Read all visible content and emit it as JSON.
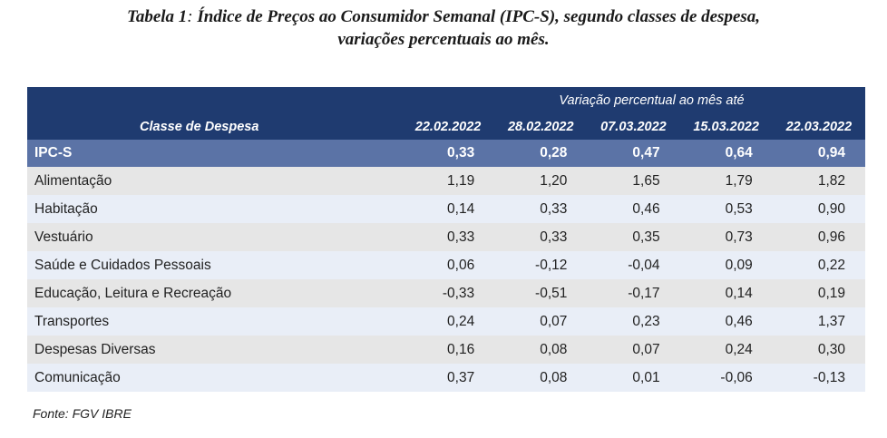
{
  "title": {
    "label": "Tabela 1",
    "separator": ":",
    "line1_rest": " Índice de Preços ao Consumidor Semanal (IPC-S), segundo classes de despesa,",
    "line2": "variações percentuais ao mês."
  },
  "table": {
    "group_header": "Variação percentual ao mês até",
    "class_header": "Classe de Despesa",
    "dates": [
      "22.02.2022",
      "28.02.2022",
      "07.03.2022",
      "15.03.2022",
      "22.03.2022"
    ],
    "rows": [
      {
        "label": "IPC-S",
        "values": [
          "0,33",
          "0,28",
          "0,47",
          "0,64",
          "0,94"
        ]
      },
      {
        "label": "Alimentação",
        "values": [
          "1,19",
          "1,20",
          "1,65",
          "1,79",
          "1,82"
        ]
      },
      {
        "label": "Habitação",
        "values": [
          "0,14",
          "0,33",
          "0,46",
          "0,53",
          "0,90"
        ]
      },
      {
        "label": "Vestuário",
        "values": [
          "0,33",
          "0,33",
          "0,35",
          "0,73",
          "0,96"
        ]
      },
      {
        "label": "Saúde e Cuidados Pessoais",
        "values": [
          "0,06",
          "-0,12",
          "-0,04",
          "0,09",
          "0,22"
        ]
      },
      {
        "label": "Educação, Leitura e Recreação",
        "values": [
          "-0,33",
          "-0,51",
          "-0,17",
          "0,14",
          "0,19"
        ]
      },
      {
        "label": "Transportes",
        "values": [
          "0,24",
          "0,07",
          "0,23",
          "0,46",
          "1,37"
        ]
      },
      {
        "label": "Despesas Diversas",
        "values": [
          "0,16",
          "0,08",
          "0,07",
          "0,24",
          "0,30"
        ]
      },
      {
        "label": "Comunicação",
        "values": [
          "0,37",
          "0,08",
          "0,01",
          "-0,06",
          "-0,13"
        ]
      }
    ]
  },
  "source": "Fonte: FGV IBRE",
  "colors": {
    "header_bg": "#1f3b70",
    "highlight_row_bg": "#5b73a6",
    "row_gray": "#e6e6e6",
    "row_blue": "#e9eef7"
  }
}
